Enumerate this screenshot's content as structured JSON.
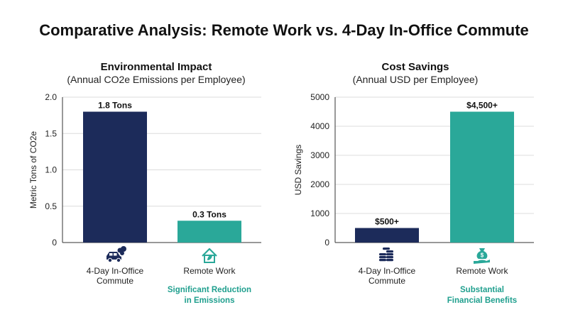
{
  "title": "Comparative Analysis: Remote Work vs. 4-Day In-Office Commute",
  "colors": {
    "commute": "#1c2b5a",
    "remote": "#2aa899",
    "note": "#1f9f8e",
    "grid": "#dcdcdc",
    "axis": "#333333"
  },
  "chart_data": [
    {
      "type": "bar",
      "title": "Environmental Impact",
      "subtitle": "(Annual CO2e Emissions per Employee)",
      "ylabel": "Metric Tons of CO2e",
      "xlabel": "",
      "ylim": [
        0,
        2.0
      ],
      "ytick_labels": [
        "0",
        "0.5",
        "1.0",
        "1.5",
        "2.0"
      ],
      "ytick_values": [
        0,
        0.5,
        1.0,
        1.5,
        2.0
      ],
      "grid": true,
      "categories": [
        "4-Day In-Office\nCommute",
        "Remote Work"
      ],
      "values": [
        1.8,
        0.3
      ],
      "data_labels": [
        "1.8 Tons",
        "0.3 Tons"
      ],
      "icons": [
        "car-emissions-icon",
        "eco-house-icon"
      ],
      "note": "Significant Reduction\nin Emissions"
    },
    {
      "type": "bar",
      "title": "Cost Savings",
      "subtitle": "(Annual USD per Employee)",
      "ylabel": "USD Savings",
      "xlabel": "",
      "ylim": [
        0,
        5000
      ],
      "ytick_labels": [
        "0",
        "1000",
        "2000",
        "3000",
        "4000",
        "5000"
      ],
      "ytick_values": [
        0,
        1000,
        2000,
        3000,
        4000,
        5000
      ],
      "grid": true,
      "categories": [
        "4-Day In-Office\nCommute",
        "Remote Work"
      ],
      "values": [
        500,
        4500
      ],
      "data_labels": [
        "$500+",
        "$4,500+"
      ],
      "icons": [
        "coin-stack-icon",
        "money-bag-hand-icon"
      ],
      "note": "Substantial\nFinancial Benefits"
    }
  ]
}
